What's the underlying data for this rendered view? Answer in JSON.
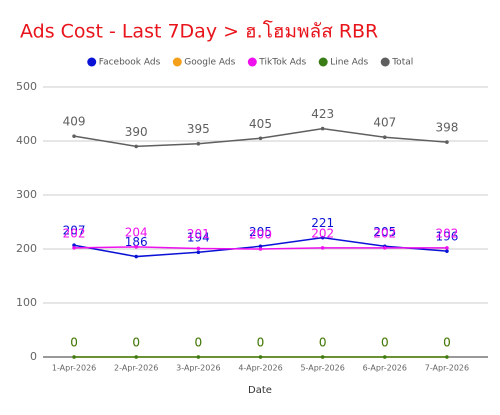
{
  "chart_data": {
    "type": "line",
    "title": "Ads Cost - Last 7Day > ฮ.โฮมพลัส RBR",
    "x_label": "Date",
    "categories": [
      "1-Apr-2026",
      "2-Apr-2026",
      "3-Apr-2026",
      "4-Apr-2026",
      "5-Apr-2026",
      "6-Apr-2026",
      "7-Apr-2026"
    ],
    "series": [
      {
        "name": "Facebook Ads",
        "color": "#0a12d6",
        "values": [
          207,
          186,
          194,
          205,
          221,
          205,
          196
        ]
      },
      {
        "name": "Google Ads",
        "color": "#f5a01a",
        "values": [
          0,
          0,
          0,
          0,
          0,
          0,
          0
        ]
      },
      {
        "name": "TikTok Ads",
        "color": "#ee11ee",
        "values": [
          202,
          204,
          201,
          200,
          202,
          202,
          202
        ]
      },
      {
        "name": "Line Ads",
        "color": "#3a7d17",
        "values": [
          0,
          0,
          0,
          0,
          0,
          0,
          0
        ]
      },
      {
        "name": "Total",
        "color": "#5f5f5f",
        "values": [
          409,
          390,
          395,
          405,
          423,
          407,
          398
        ]
      }
    ],
    "ylim": [
      0,
      500
    ],
    "yticks": [
      0,
      100,
      200,
      300,
      400,
      500
    ],
    "grid": true,
    "title_color": "#e8141b"
  }
}
